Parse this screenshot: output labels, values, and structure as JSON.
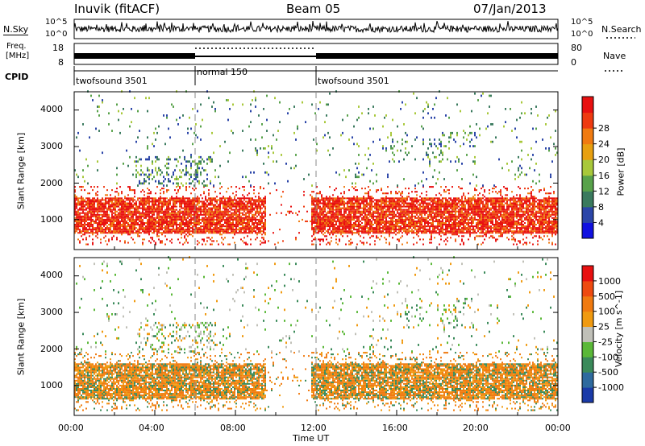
{
  "header": {
    "station": "Inuvik (fitACF)",
    "beam": "Beam 05",
    "date": "07/Jan/2013"
  },
  "noise_panel": {
    "left_label": "N.Sky",
    "right_label": "N.Search",
    "left_ticks": [
      "10^5",
      "10^0"
    ],
    "right_ticks": [
      "10^5",
      "10^0"
    ]
  },
  "freq_panel": {
    "left_label_line1": "Freq.",
    "left_label_line2": "[MHz]",
    "right_label": "Nave",
    "left_ticks": [
      "18",
      "8"
    ],
    "right_ticks": [
      "80",
      "0"
    ]
  },
  "cpid_panel": {
    "label": "CPID",
    "segments": [
      {
        "name": "twofsound 3501",
        "start": 0,
        "end": 6
      },
      {
        "name": "normal 150",
        "start": 6,
        "end": 12
      },
      {
        "name": "twofsound 3501",
        "start": 12,
        "end": 24
      }
    ]
  },
  "x_axis": {
    "label": "Time UT",
    "ticks": [
      "00:00",
      "04:00",
      "08:00",
      "12:00",
      "16:00",
      "20:00",
      "00:00"
    ]
  },
  "chart_data": [
    {
      "type": "heatmap",
      "ylabel": "Slant Range [km]",
      "ylim": [
        180,
        4500
      ],
      "yticks": [
        1000,
        2000,
        3000,
        4000
      ],
      "xlim": [
        0,
        24
      ],
      "colorbar": {
        "label": "Power [dB]",
        "ticks": [
          "4",
          "8",
          "12",
          "16",
          "20",
          "24",
          "28"
        ],
        "colors": [
          "#1010e0",
          "#2b45a8",
          "#3a7a5e",
          "#58a24a",
          "#a8c83a",
          "#e8a010",
          "#f07a10",
          "#ee3a10",
          "#e81010"
        ]
      },
      "main_band_km": [
        600,
        1600
      ],
      "mode_boundaries": [
        6,
        12
      ]
    },
    {
      "type": "heatmap",
      "ylabel": "Slant Range [km]",
      "ylim": [
        180,
        4500
      ],
      "yticks": [
        1000,
        2000,
        3000,
        4000
      ],
      "xlim": [
        0,
        24
      ],
      "colorbar": {
        "label": "Velocity [m s^-1]",
        "ticks": [
          "1000",
          "500",
          "100",
          "25",
          "-25",
          "-100",
          "-500",
          "-1000"
        ],
        "colors": [
          "#1a3aa8",
          "#2e6a9e",
          "#3a8a5a",
          "#5ab838",
          "#c0c0b8",
          "#f09a10",
          "#f07a10",
          "#ee4a10",
          "#e81010"
        ]
      },
      "main_band_km": [
        600,
        1600
      ],
      "mode_boundaries": [
        6,
        12
      ]
    }
  ]
}
